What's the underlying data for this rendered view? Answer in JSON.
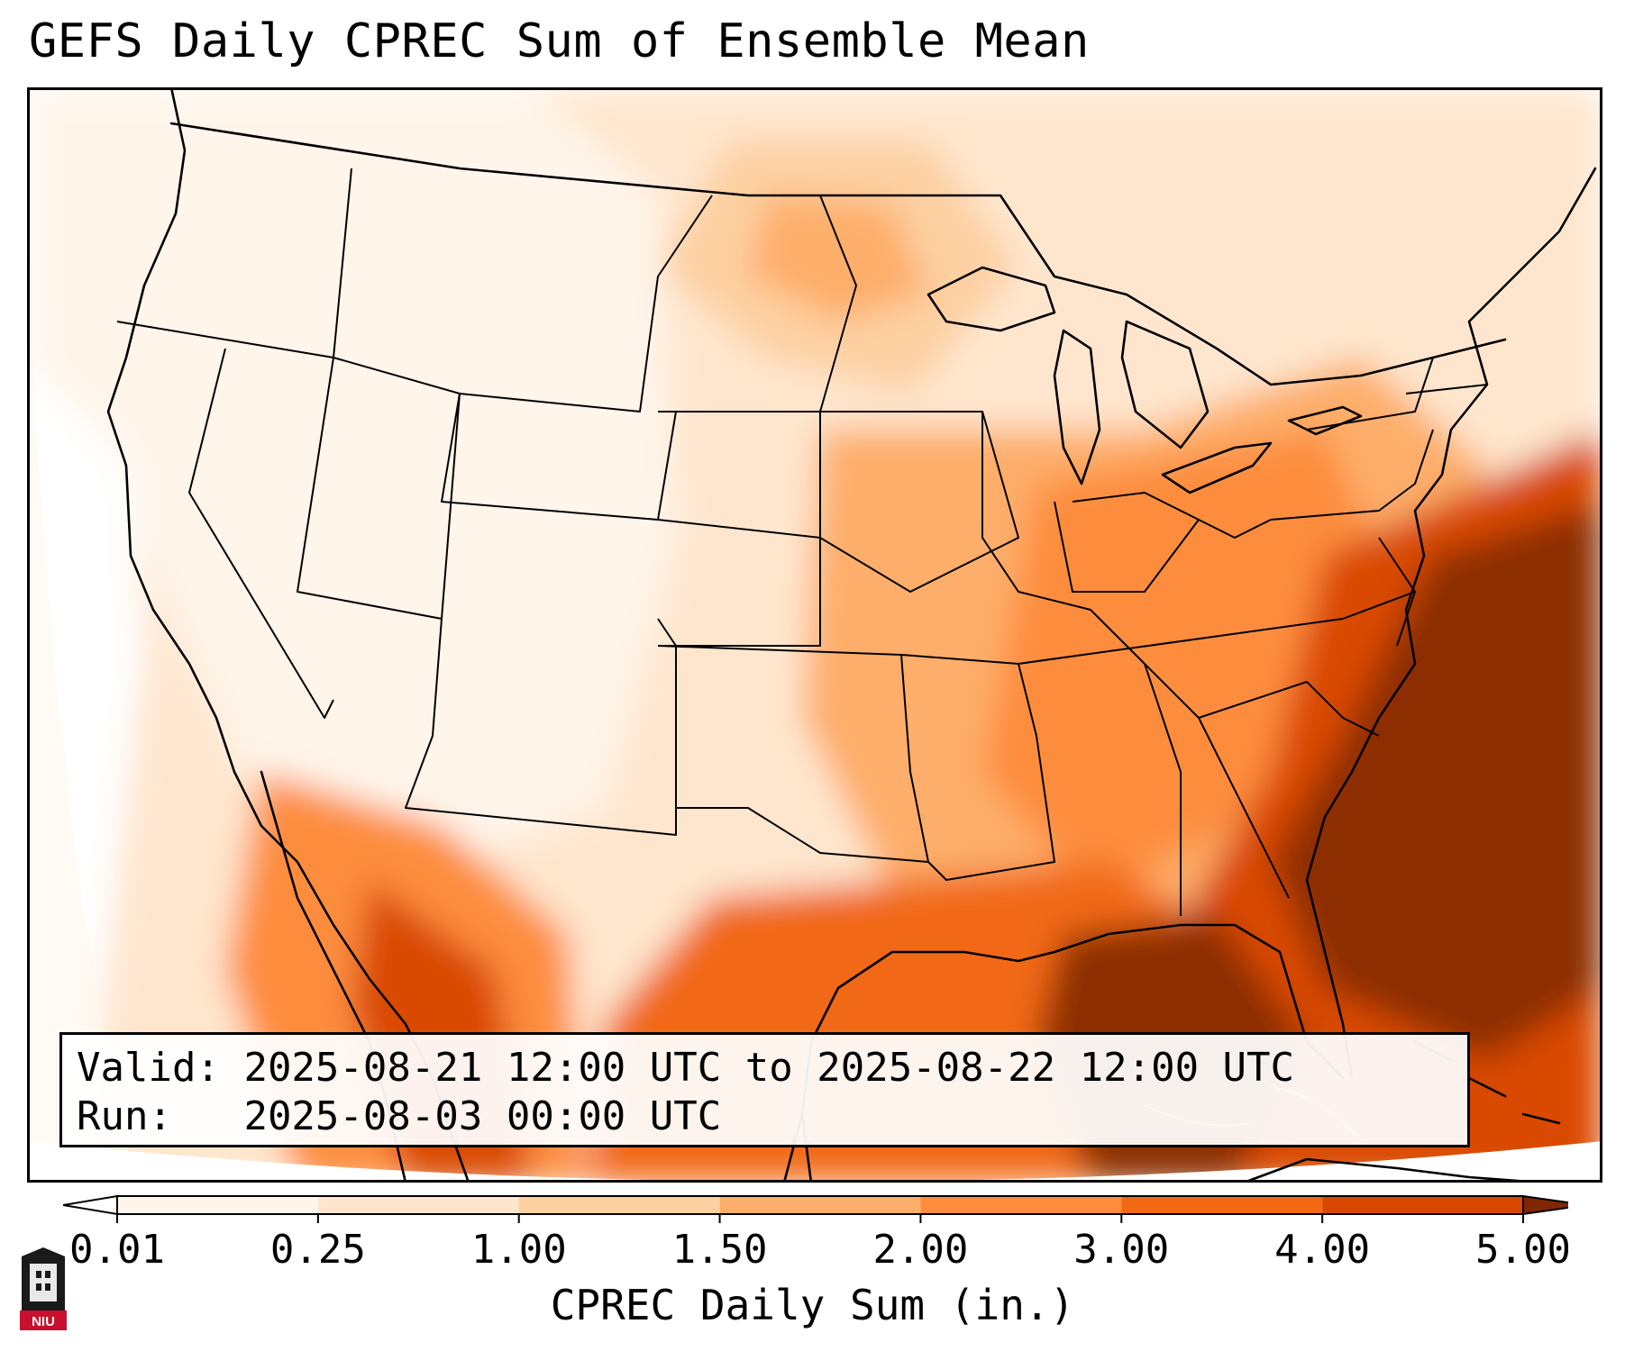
{
  "title": "GEFS Daily CPREC Sum of Ensemble Mean",
  "info": {
    "valid_label": "Valid:",
    "valid_value": "2025-08-21 12:00 UTC to 2025-08-22 12:00 UTC",
    "run_label": "Run:",
    "run_value": "2025-08-03 00:00 UTC"
  },
  "colorbar": {
    "label": "CPREC Daily Sum (in.)",
    "ticks": [
      "0.01",
      "0.25",
      "1.00",
      "1.50",
      "2.00",
      "3.00",
      "4.00",
      "5.00"
    ],
    "colors": [
      "#fff5eb",
      "#fee6ce",
      "#fdd0a2",
      "#fdae6b",
      "#fd8d3c",
      "#f16913",
      "#d94801",
      "#8c2d04"
    ],
    "under_color": "#ffffff",
    "over_color": "#7f2704",
    "extend": "both"
  },
  "logo": {
    "text": "NIU",
    "name": "niu-logo"
  },
  "colors": {
    "line": "#000000",
    "background": "#ffffff"
  }
}
